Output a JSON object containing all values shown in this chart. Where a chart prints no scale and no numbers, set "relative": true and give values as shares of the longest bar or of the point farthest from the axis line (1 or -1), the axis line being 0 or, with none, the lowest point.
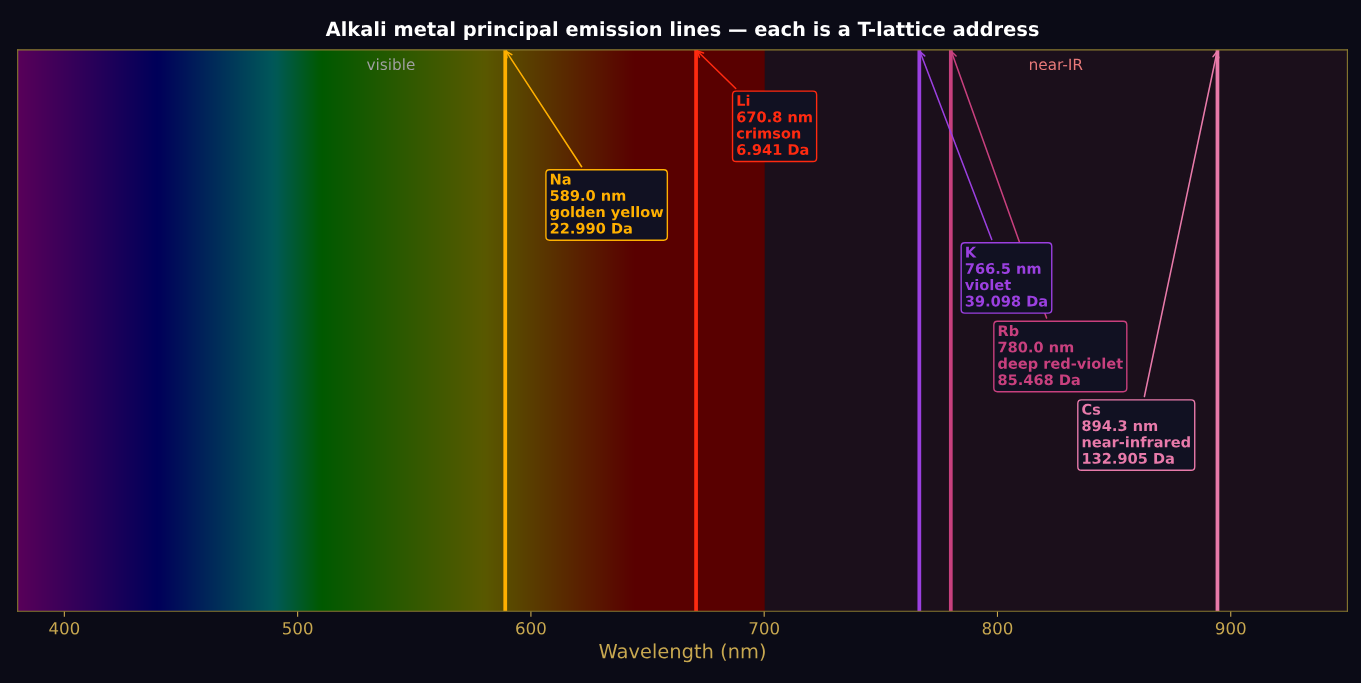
{
  "chart_data": {
    "type": "bar",
    "relative": true,
    "title": "Alkali metal principal emission lines — each is a T-lattice address",
    "xlabel": "Wavelength (nm)",
    "xlim": [
      380,
      950
    ],
    "xticks": [
      400,
      500,
      600,
      700,
      800,
      900
    ],
    "tick_labels": "x",
    "x": [
      589.0,
      670.8,
      766.5,
      780.0,
      894.3
    ],
    "values": [
      1,
      1,
      1,
      1,
      1
    ],
    "colors": [
      "#ffb000",
      "#ff2a10",
      "#9b40e0",
      "#c8407e",
      "#e87aaa"
    ],
    "bands": [
      {
        "axis": "x",
        "from": 380,
        "to": 700,
        "label": "visible",
        "color": "#2a1040"
      },
      {
        "axis": "x",
        "from": 700,
        "to": 950,
        "label": "near-IR",
        "color": "#1b0f1b"
      }
    ],
    "annotations": [
      {
        "text": "Na\n589.0 nm\ngolden yellow\n22.990 Da",
        "x": 589.0,
        "y": 1
      },
      {
        "text": "Li\n670.8 nm\ncrimson\n6.941 Da",
        "x": 670.8,
        "y": 1
      },
      {
        "text": "K\n766.5 nm\nviolet\n39.098 Da",
        "x": 766.5,
        "y": 1
      },
      {
        "text": "Rb\n780.0 nm\ndeep red-violet\n85.468 Da",
        "x": 780.0,
        "y": 1
      },
      {
        "text": "Cs\n894.3 nm\nnear-infrared\n132.905 Da",
        "x": 894.3,
        "y": 1
      }
    ]
  }
}
